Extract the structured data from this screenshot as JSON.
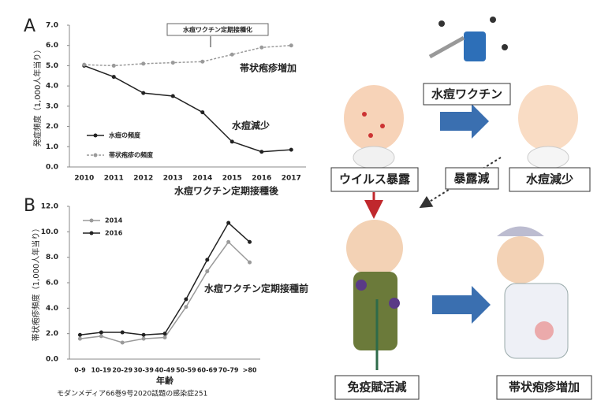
{
  "chart_data": [
    {
      "type": "line",
      "panel": "A",
      "y_label": "発症頻度（1,000人年当り）",
      "categories": [
        "2010",
        "2011",
        "2012",
        "2013",
        "2014",
        "2015",
        "2016",
        "2017"
      ],
      "series": [
        {
          "name": "水痘の頻度",
          "color": "#222222",
          "dash": false,
          "values": [
            5.0,
            4.45,
            3.65,
            3.5,
            2.7,
            1.25,
            0.75,
            0.85
          ]
        },
        {
          "name": "帯状疱疹の頻度",
          "color": "#9a9a9a",
          "dash": true,
          "values": [
            5.05,
            5.0,
            5.1,
            5.15,
            5.2,
            5.55,
            5.9,
            6.0
          ]
        }
      ],
      "ylim": [
        0,
        7
      ],
      "yticks": [
        {
          "value": 0,
          "label": "0.0"
        },
        {
          "value": 1,
          "label": "1.0"
        },
        {
          "value": 2,
          "label": "2.0"
        },
        {
          "value": 3,
          "label": "3.0"
        },
        {
          "value": 4,
          "label": "4.0"
        },
        {
          "value": 5,
          "label": "5.0"
        },
        {
          "value": 6,
          "label": "6.0"
        },
        {
          "value": 7,
          "label": "7.0"
        }
      ],
      "annotations": [
        "水痘ワクチン定期接種化",
        "帯状疱疹増加",
        "水痘減少"
      ]
    },
    {
      "type": "line",
      "panel": "B",
      "y_label": "帯状疱疹頻度（1,000人年当り）",
      "x_label": "年齢",
      "categories": [
        "0-9",
        "10-19",
        "20-29",
        "30-39",
        "40-49",
        "50-59",
        "60-69",
        "70-79",
        ">80"
      ],
      "series": [
        {
          "name": "2014",
          "color": "#9a9a9a",
          "dash": false,
          "values": [
            1.6,
            1.8,
            1.3,
            1.6,
            1.7,
            4.1,
            6.9,
            9.2,
            7.6
          ]
        },
        {
          "name": "2016",
          "color": "#222222",
          "dash": false,
          "values": [
            1.9,
            2.1,
            2.1,
            1.9,
            2.0,
            4.7,
            7.8,
            10.7,
            9.2
          ]
        }
      ],
      "ylim": [
        0,
        12
      ],
      "yticks": [
        {
          "value": 0,
          "label": "0.0"
        },
        {
          "value": 2,
          "label": "2.0"
        },
        {
          "value": 4,
          "label": "4.0"
        },
        {
          "value": 6,
          "label": "6.0"
        },
        {
          "value": 8,
          "label": "8.0"
        },
        {
          "value": 10,
          "label": "10.0"
        },
        {
          "value": 12,
          "label": "12.0"
        }
      ],
      "annotations": [
        "水痘ワクチン定期接種後",
        "水痘ワクチン定期接種前"
      ]
    }
  ],
  "diagram": {
    "labels": [
      "ウイルス暴露",
      "水痘ワクチン",
      "水痘減少",
      "暴露減",
      "免疫賦活減",
      "帯状疱疹増加"
    ]
  },
  "caption": "モダンメディア66巻9号2020話題の感染症251"
}
